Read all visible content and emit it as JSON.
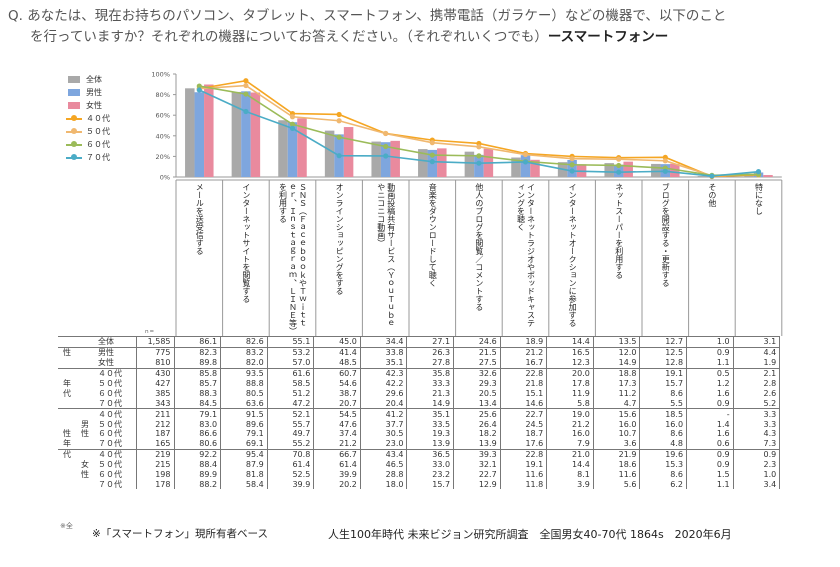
{
  "question": {
    "line1": "Q. あなたは、現在お持ちのパソコン、タブレット、スマートフォン、携帯電話（ガラケー）などの機器で、以下のこと",
    "line2": "を行っていますか？それぞれの機器についてお答えください。（それぞれいくつでも）",
    "device": "ースマートフォンー"
  },
  "chart_data": {
    "type": "bar",
    "title": "ースマートフォンー",
    "ylim": [
      0,
      100
    ],
    "yticks": [
      "0%",
      "20%",
      "40%",
      "60%",
      "80%",
      "100%"
    ],
    "categories": [
      "メールを送受信する",
      "インターネットサイトを閲覧する",
      "ＳＮＳ（ＦａｃｅｂｏｏｋやＴｗｉｔｔｅｒ、Ｉｎｓｔａｇｒａｍ、ＬＩＮＥ等）を利用する",
      "オンラインショッピングをする",
      "動画投稿共有サービス（ＹｏｕＴｕｂｅやニコニコ動画）",
      "音楽をダウンロードして聴く",
      "他人のブログを閲覧／コメントする",
      "インターネットラジオやポッドキャスティングを聴く",
      "インターネットオークションに参加する",
      "ネットスーパーを利用する",
      "ブログを開設する・更新する",
      "その他",
      "特になし"
    ],
    "bar_series": [
      {
        "name": "全体",
        "color": "#a9a9a9",
        "values": [
          86.1,
          82.6,
          55.1,
          45.0,
          34.4,
          27.1,
          24.6,
          18.9,
          14.4,
          13.5,
          12.7,
          1.0,
          3.1
        ]
      },
      {
        "name": "男性",
        "color": "#7ea6de",
        "values": [
          82.3,
          83.2,
          53.2,
          41.4,
          33.8,
          26.3,
          21.5,
          21.2,
          16.5,
          12.0,
          12.5,
          0.9,
          4.4
        ]
      },
      {
        "name": "女性",
        "color": "#e98a9e",
        "values": [
          89.8,
          82.0,
          57.0,
          48.5,
          35.1,
          27.8,
          27.5,
          16.7,
          12.3,
          14.9,
          12.8,
          1.1,
          1.9
        ]
      }
    ],
    "line_series": [
      {
        "name": "４０代",
        "color": "#f5a623",
        "values": [
          85.8,
          93.5,
          61.6,
          60.7,
          42.3,
          35.8,
          32.6,
          22.8,
          20.0,
          18.8,
          19.1,
          0.5,
          2.1
        ]
      },
      {
        "name": "５０代",
        "color": "#f0b870",
        "values": [
          85.7,
          88.8,
          58.5,
          54.6,
          42.2,
          33.3,
          29.3,
          21.8,
          17.8,
          17.3,
          15.7,
          1.2,
          2.8
        ]
      },
      {
        "name": "６０代",
        "color": "#9bbb59",
        "values": [
          88.3,
          80.5,
          51.2,
          38.7,
          29.6,
          21.3,
          20.5,
          15.1,
          11.9,
          11.2,
          8.6,
          1.6,
          2.6
        ]
      },
      {
        "name": "７０代",
        "color": "#4bacc6",
        "values": [
          84.5,
          63.6,
          47.2,
          20.7,
          20.4,
          14.9,
          13.4,
          14.6,
          5.8,
          4.7,
          5.5,
          0.9,
          5.2
        ]
      }
    ]
  },
  "table": {
    "n_label": "ｎ=",
    "rows": [
      {
        "g1": "",
        "g2": "",
        "sub": "全体",
        "n": "1,585",
        "v": [
          "86.1",
          "82.6",
          "55.1",
          "45.0",
          "34.4",
          "27.1",
          "24.6",
          "18.9",
          "14.4",
          "13.5",
          "12.7",
          "1.0",
          "3.1"
        ]
      },
      {
        "g1": "性",
        "g2": "",
        "sub": "男性",
        "n": "775",
        "v": [
          "82.3",
          "83.2",
          "53.2",
          "41.4",
          "33.8",
          "26.3",
          "21.5",
          "21.2",
          "16.5",
          "12.0",
          "12.5",
          "0.9",
          "4.4"
        ]
      },
      {
        "g1": "",
        "g2": "",
        "sub": "女性",
        "n": "810",
        "v": [
          "89.8",
          "82.0",
          "57.0",
          "48.5",
          "35.1",
          "27.8",
          "27.5",
          "16.7",
          "12.3",
          "14.9",
          "12.8",
          "1.1",
          "1.9"
        ]
      },
      {
        "g1": "",
        "g2": "",
        "sub": "４０代",
        "n": "430",
        "v": [
          "85.8",
          "93.5",
          "61.6",
          "60.7",
          "42.3",
          "35.8",
          "32.6",
          "22.8",
          "20.0",
          "18.8",
          "19.1",
          "0.5",
          "2.1"
        ]
      },
      {
        "g1": "年",
        "g2": "",
        "sub": "５０代",
        "n": "427",
        "v": [
          "85.7",
          "88.8",
          "58.5",
          "54.6",
          "42.2",
          "33.3",
          "29.3",
          "21.8",
          "17.8",
          "17.3",
          "15.7",
          "1.2",
          "2.8"
        ]
      },
      {
        "g1": "代",
        "g2": "",
        "sub": "６０代",
        "n": "385",
        "v": [
          "88.3",
          "80.5",
          "51.2",
          "38.7",
          "29.6",
          "21.3",
          "20.5",
          "15.1",
          "11.9",
          "11.2",
          "8.6",
          "1.6",
          "2.6"
        ]
      },
      {
        "g1": "",
        "g2": "",
        "sub": "７０代",
        "n": "343",
        "v": [
          "84.5",
          "63.6",
          "47.2",
          "20.7",
          "20.4",
          "14.9",
          "13.4",
          "14.6",
          "5.8",
          "4.7",
          "5.5",
          "0.9",
          "5.2"
        ]
      },
      {
        "g1": "",
        "g2": "",
        "sub": "４０代",
        "n": "211",
        "v": [
          "79.1",
          "91.5",
          "52.1",
          "54.5",
          "41.2",
          "35.1",
          "25.6",
          "22.7",
          "19.0",
          "15.6",
          "18.5",
          "-",
          "3.3"
        ]
      },
      {
        "g1": "",
        "g2": "男",
        "sub": "５０代",
        "n": "212",
        "v": [
          "83.0",
          "89.6",
          "55.7",
          "47.6",
          "37.7",
          "33.5",
          "26.4",
          "24.5",
          "21.2",
          "16.0",
          "16.0",
          "1.4",
          "3.3"
        ]
      },
      {
        "g1": "性",
        "g2": "性",
        "sub": "６０代",
        "n": "187",
        "v": [
          "86.6",
          "79.1",
          "49.7",
          "37.4",
          "30.5",
          "19.3",
          "18.2",
          "18.7",
          "16.0",
          "10.7",
          "8.6",
          "1.6",
          "4.3"
        ]
      },
      {
        "g1": "年",
        "g2": "",
        "sub": "７０代",
        "n": "165",
        "v": [
          "80.6",
          "69.1",
          "55.2",
          "21.2",
          "23.0",
          "13.9",
          "13.9",
          "17.6",
          "7.9",
          "3.6",
          "4.8",
          "0.6",
          "7.3"
        ]
      },
      {
        "g1": "代",
        "g2": "",
        "sub": "４０代",
        "n": "219",
        "v": [
          "92.2",
          "95.4",
          "70.8",
          "66.7",
          "43.4",
          "36.5",
          "39.3",
          "22.8",
          "21.0",
          "21.9",
          "19.6",
          "0.9",
          "0.9"
        ]
      },
      {
        "g1": "",
        "g2": "女",
        "sub": "５０代",
        "n": "215",
        "v": [
          "88.4",
          "87.9",
          "61.4",
          "61.4",
          "46.5",
          "33.0",
          "32.1",
          "19.1",
          "14.4",
          "18.6",
          "15.3",
          "0.9",
          "2.3"
        ]
      },
      {
        "g1": "",
        "g2": "性",
        "sub": "６０代",
        "n": "198",
        "v": [
          "89.9",
          "81.8",
          "52.5",
          "39.9",
          "28.8",
          "23.2",
          "22.7",
          "11.6",
          "8.1",
          "11.6",
          "8.6",
          "1.5",
          "1.0"
        ]
      },
      {
        "g1": "",
        "g2": "",
        "sub": "７０代",
        "n": "178",
        "v": [
          "88.2",
          "58.4",
          "39.9",
          "20.2",
          "18.0",
          "15.7",
          "12.9",
          "11.8",
          "3.9",
          "5.6",
          "6.2",
          "1.1",
          "3.4"
        ]
      }
    ]
  },
  "stub": "※全",
  "note": "※「スマートフォン」現所有者ベース",
  "source": "人生100年時代 未来ビジョン研究所調査　全国男女40-70代 1864s　2020年6月"
}
